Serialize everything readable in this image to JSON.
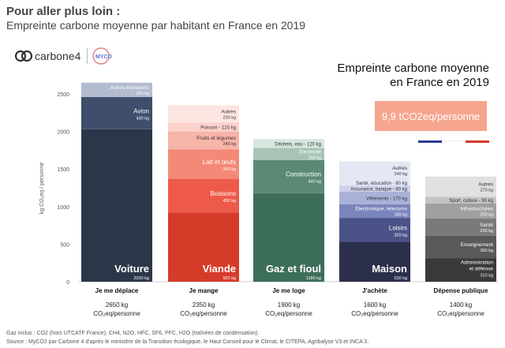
{
  "header": {
    "title": "Pour aller plus loin :",
    "subtitle": "Empreinte carbone moyenne par habitant en France en 2019"
  },
  "logos": {
    "carbone4": "carbone4",
    "myco": "MYCO"
  },
  "chart_title_line1": "Empreinte carbone moyenne",
  "chart_title_line2": "en France en 2019",
  "total_label": "9,9 tCO2eq/personne",
  "footnote_line1": "Gaz inclus : CO2 (hors UTCATF France), CH4, N2O, HFC, SF6, PFC, H2O (traînées de condensation).",
  "footnote_line2": "Source : MyCO2 par Carbone 4 d'après le ministère de la Transition écologique, le Haut Conseil pour le Climat, le CITEPA, Agribalyse V3 et INCA 3.",
  "colors": {
    "blue": [
      "#2b3748",
      "#3e4e6b",
      "#b3bccf"
    ],
    "red": [
      "#d63b2a",
      "#ee5a49",
      "#f48978",
      "#f7b4a8",
      "#fbd2cb",
      "#fde6e2"
    ],
    "green": [
      "#3d6e5a",
      "#5a8a76",
      "#a7c4b6",
      "#d6e6de"
    ],
    "purple": [
      "#2c2f4c",
      "#4a5287",
      "#7a85bd",
      "#a9b1d7",
      "#cdd2ea",
      "#e4e7f4"
    ],
    "gray": [
      "#3a3a3a",
      "#595959",
      "#7a7a7a",
      "#a0a0a0",
      "#c4c4c4",
      "#e0e0e0"
    ]
  },
  "chart_data": {
    "type": "bar",
    "stacked": true,
    "ylabel": "kg CO₂eq / personne",
    "ylim": [
      0,
      2700
    ],
    "yticks": [
      0,
      500,
      1000,
      1500,
      2000,
      2500
    ],
    "categories": [
      {
        "name": "Je me déplace",
        "total_line1": "2650 kg",
        "total_line2": "CO₂eq/personne",
        "palette": "blue",
        "segments": [
          {
            "label": "Voiture",
            "value": 2030,
            "value_label": "2030 kg",
            "style": "big"
          },
          {
            "label": "Avion",
            "value": 430,
            "value_label": "430 kg",
            "style": "mid"
          },
          {
            "label": "Autres transports",
            "value": 190,
            "value_label": "190 kg",
            "style": "small"
          }
        ]
      },
      {
        "name": "Je mange",
        "total_line1": "2350 kg",
        "total_line2": "CO₂eq/personne",
        "palette": "red",
        "segments": [
          {
            "label": "Viande",
            "value": 920,
            "value_label": "920 kg",
            "style": "big"
          },
          {
            "label": "Boissons",
            "value": 450,
            "value_label": "450 kg",
            "style": "mid"
          },
          {
            "label": "Lait et œufs",
            "value": 390,
            "value_label": "390 kg",
            "style": "mid"
          },
          {
            "label": "Fruits et légumes",
            "value": 240,
            "value_label": "240 kg",
            "style": "small"
          },
          {
            "label": "Poisson",
            "value": 120,
            "value_label": "120 kg",
            "style": "inline"
          },
          {
            "label": "Autres",
            "value": 230,
            "value_label": "230 kg",
            "style": "small"
          }
        ]
      },
      {
        "name": "Je me loge",
        "total_line1": "1900 kg",
        "total_line2": "CO₂eq/personne",
        "palette": "green",
        "segments": [
          {
            "label": "Gaz et fioul",
            "value": 1180,
            "value_label": "1180 kg",
            "style": "big"
          },
          {
            "label": "Construction",
            "value": 440,
            "value_label": "440 kg",
            "style": "mid"
          },
          {
            "label": "Électricité",
            "value": 160,
            "value_label": "160 kg",
            "style": "small"
          },
          {
            "label": "Déchets, eau",
            "value": 120,
            "value_label": "120 kg",
            "style": "inline"
          }
        ]
      },
      {
        "name": "J'achète",
        "total_line1": "1600 kg",
        "total_line2": "CO₂eq/personne",
        "palette": "purple",
        "segments": [
          {
            "label": "Maison",
            "value": 530,
            "value_label": "530 kg",
            "style": "big"
          },
          {
            "label": "Loisirs",
            "value": 320,
            "value_label": "320 kg",
            "style": "mid"
          },
          {
            "label": "Électronique, telecoms",
            "value": 180,
            "value_label": "180 kg",
            "style": "small"
          },
          {
            "label": "Vêtements",
            "value": 170,
            "value_label": "170 kg",
            "style": "inline"
          },
          {
            "label": "Assurance, banque",
            "value": 80,
            "value_label": "80 kg",
            "style": "inline"
          },
          {
            "label": "Santé, éducation",
            "value": 80,
            "value_label": "80 kg",
            "style": "inline"
          },
          {
            "label": "Autres",
            "value": 240,
            "value_label": "240 kg",
            "style": "small"
          }
        ]
      },
      {
        "name": "Dépense publique",
        "total_line1": "1400 kg",
        "total_line2": "CO₂eq/personne",
        "palette": "gray",
        "segments": [
          {
            "label": "Administration et défense",
            "value": 310,
            "value_label": "310 kg",
            "style": "small"
          },
          {
            "label": "Enseignement",
            "value": 300,
            "value_label": "300 kg",
            "style": "small"
          },
          {
            "label": "Santé",
            "value": 230,
            "value_label": "230 kg",
            "style": "small"
          },
          {
            "label": "Infrastructures",
            "value": 200,
            "value_label": "200 kg",
            "style": "small"
          },
          {
            "label": "Sport, culture",
            "value": 90,
            "value_label": "90 kg",
            "style": "inline"
          },
          {
            "label": "Autres",
            "value": 270,
            "value_label": "270 kg",
            "style": "small"
          }
        ]
      }
    ]
  }
}
